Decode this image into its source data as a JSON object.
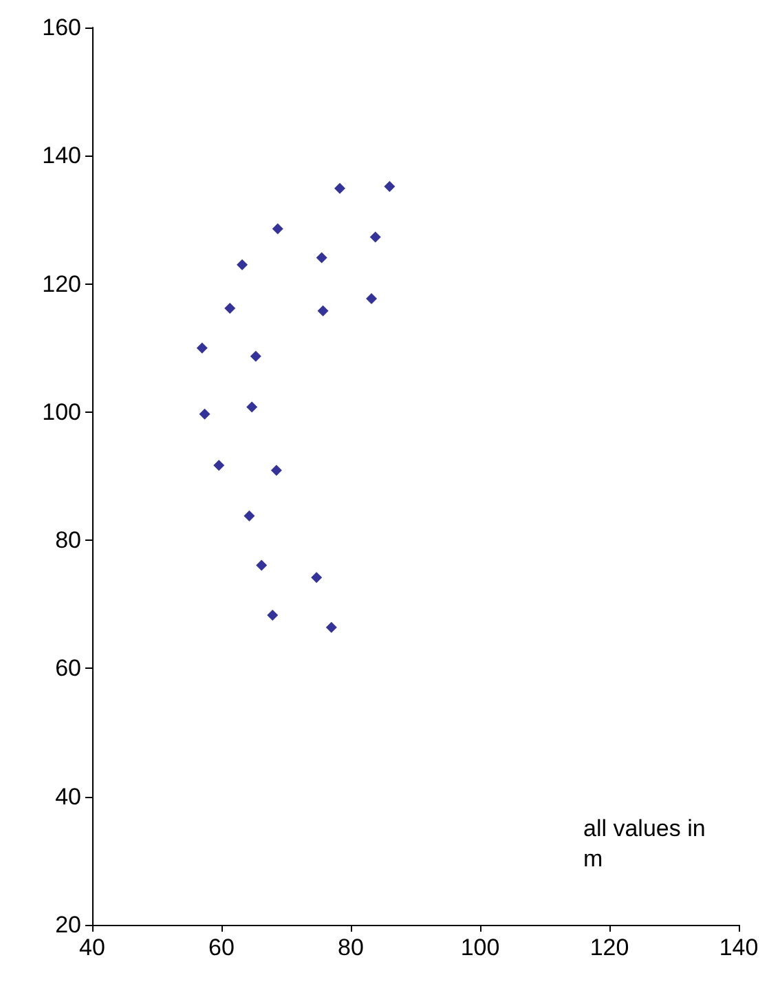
{
  "chart_data": {
    "type": "scatter",
    "marker": "diamond",
    "xlim": [
      40,
      140
    ],
    "xticks": [
      40,
      60,
      80,
      100,
      120,
      140
    ],
    "ylim": [
      20,
      160
    ],
    "yticks": [
      20,
      40,
      60,
      80,
      100,
      120,
      140,
      160
    ],
    "annotations": [
      "all values in m"
    ],
    "series": [
      {
        "color": "#000080",
        "x": [
          78.3,
          86.0,
          68.7,
          83.8,
          75.5,
          63.2,
          83.2,
          61.3,
          75.7,
          57.0,
          65.3,
          57.4,
          64.7,
          59.6,
          68.5,
          64.3,
          66.2,
          74.7,
          67.9,
          77.0
        ],
        "values": [
          134.9,
          135.2,
          128.6,
          127.3,
          124.1,
          123.0,
          117.7,
          116.2,
          115.8,
          110.0,
          108.7,
          99.7,
          100.8,
          91.7,
          90.9,
          83.8,
          76.1,
          74.2,
          68.3,
          66.4
        ]
      }
    ]
  }
}
